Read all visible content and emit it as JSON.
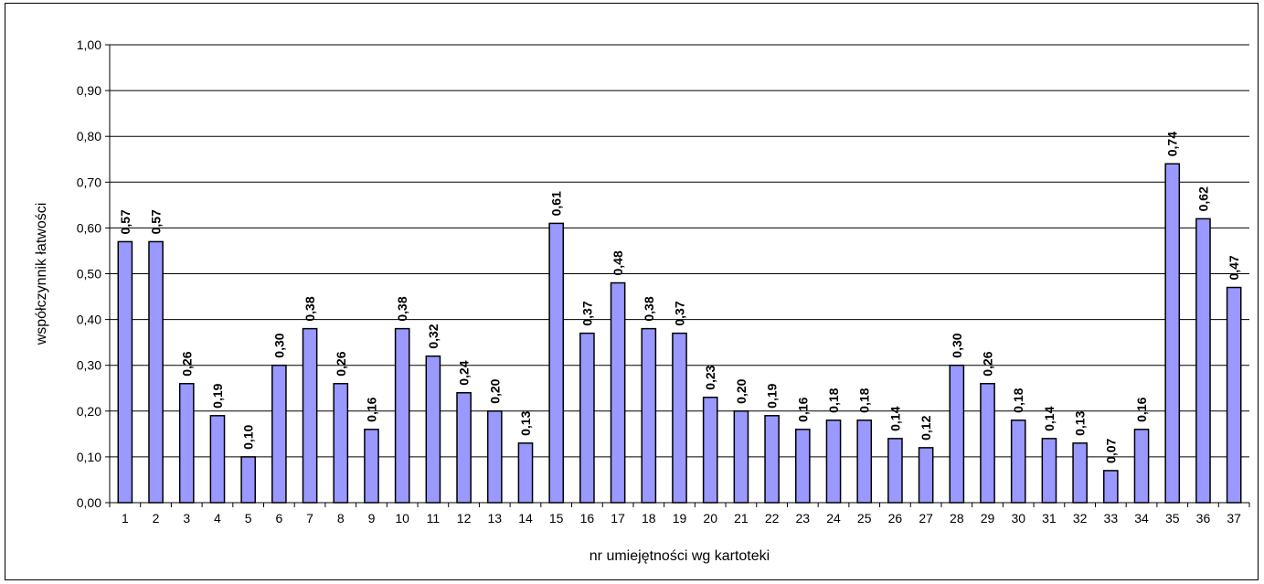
{
  "chart_data": {
    "type": "bar",
    "title": "",
    "xlabel": "nr umiejętności wg kartoteki",
    "ylabel": "współczynnik łatwości",
    "ylim": [
      0,
      1
    ],
    "yticks": [
      "0,00",
      "0,10",
      "0,20",
      "0,30",
      "0,40",
      "0,50",
      "0,60",
      "0,70",
      "0,80",
      "0,90",
      "1,00"
    ],
    "grid": true,
    "bar_color": "#9999ff",
    "categories": [
      "1",
      "2",
      "3",
      "4",
      "5",
      "6",
      "7",
      "8",
      "9",
      "10",
      "11",
      "12",
      "13",
      "14",
      "15",
      "16",
      "17",
      "18",
      "19",
      "20",
      "21",
      "22",
      "23",
      "24",
      "25",
      "26",
      "27",
      "28",
      "29",
      "30",
      "31",
      "32",
      "33",
      "34",
      "35",
      "36",
      "37"
    ],
    "values": [
      0.57,
      0.57,
      0.26,
      0.19,
      0.1,
      0.3,
      0.38,
      0.26,
      0.16,
      0.38,
      0.32,
      0.24,
      0.2,
      0.13,
      0.61,
      0.37,
      0.48,
      0.38,
      0.37,
      0.23,
      0.2,
      0.19,
      0.16,
      0.18,
      0.18,
      0.14,
      0.12,
      0.3,
      0.26,
      0.18,
      0.14,
      0.13,
      0.07,
      0.16,
      0.74,
      0.62,
      0.47
    ],
    "data_labels": [
      "0,57",
      "0,57",
      "0,26",
      "0,19",
      "0,10",
      "0,30",
      "0,38",
      "0,26",
      "0,16",
      "0,38",
      "0,32",
      "0,24",
      "0,20",
      "0,13",
      "0,61",
      "0,37",
      "0,48",
      "0,38",
      "0,37",
      "0,23",
      "0,20",
      "0,19",
      "0,16",
      "0,18",
      "0,18",
      "0,14",
      "0,12",
      "0,30",
      "0,26",
      "0,18",
      "0,14",
      "0,13",
      "0,07",
      "0,16",
      "0,74",
      "0,62",
      "0,47"
    ]
  }
}
